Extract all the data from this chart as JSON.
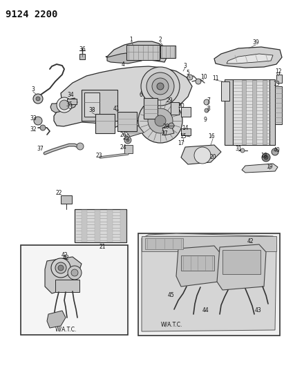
{
  "title": "9124 2200",
  "bg_color": "#ffffff",
  "title_fontsize": 10,
  "title_fontweight": "bold",
  "fig_width": 4.11,
  "fig_height": 5.33,
  "dpi": 100,
  "line_color": "#2a2a2a",
  "fill_light": "#d8d8d8",
  "fill_medium": "#c0c0c0",
  "fill_dark": "#a0a0a0"
}
